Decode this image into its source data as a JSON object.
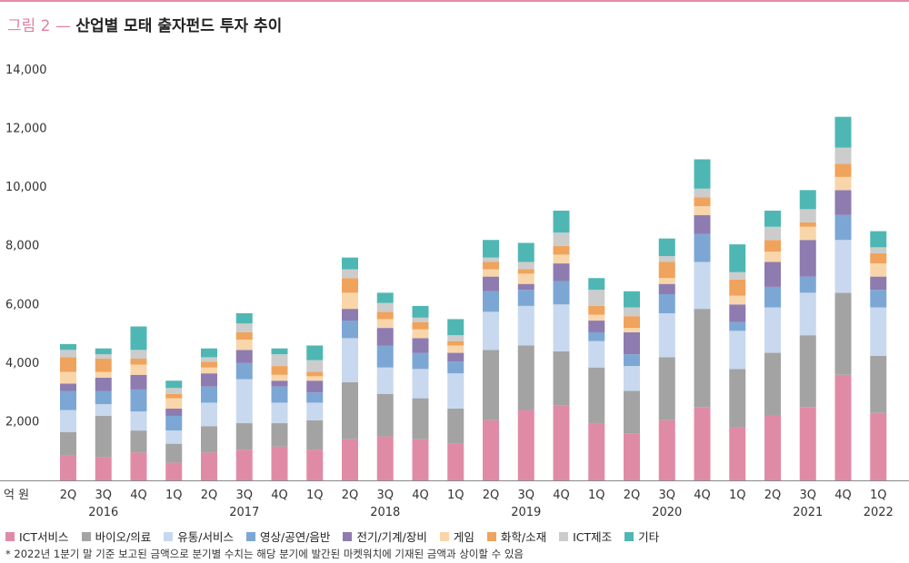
{
  "header": {
    "figure_label": "그림 2 —",
    "title": "산업별 모태 출자펀드 투자 추이"
  },
  "footnote": "* 2022년 1분기 말 기준 보고된 금액으로 분기별 수치는 해당 분기에 발간된 마켓워치에 기재된 금액과 상이할 수 있음",
  "chart_data": {
    "type": "bar",
    "stacked": true,
    "title": "산업별 모태 출자펀드 투자 추이",
    "ylabel": "억 원",
    "ylim": [
      0,
      14000
    ],
    "yticks": [
      2000,
      4000,
      6000,
      8000,
      10000,
      12000,
      14000
    ],
    "ytick_labels": [
      "2,000",
      "4,000",
      "6,000",
      "8,000",
      "10,000",
      "12,000",
      "14,000"
    ],
    "grid": false,
    "legend_position": "bottom",
    "categories": [
      "2Q",
      "3Q",
      "4Q",
      "1Q",
      "2Q",
      "3Q",
      "4Q",
      "1Q",
      "2Q",
      "3Q",
      "4Q",
      "1Q",
      "2Q",
      "3Q",
      "4Q",
      "1Q",
      "2Q",
      "3Q",
      "4Q",
      "1Q",
      "2Q",
      "3Q",
      "4Q",
      "1Q"
    ],
    "year_labels": [
      {
        "index": 1,
        "label": "2016"
      },
      {
        "index": 5,
        "label": "2017"
      },
      {
        "index": 9,
        "label": "2018"
      },
      {
        "index": 13,
        "label": "2019"
      },
      {
        "index": 17,
        "label": "2020"
      },
      {
        "index": 21,
        "label": "2021"
      },
      {
        "index": 23,
        "label": "2022"
      }
    ],
    "series": [
      {
        "name": "ICT서비스",
        "color": "#e08ba6",
        "values": [
          850,
          800,
          950,
          600,
          950,
          1050,
          1150,
          1050,
          1400,
          1500,
          1400,
          1250,
          2050,
          2400,
          2550,
          1950,
          1600,
          2050,
          2500,
          1800,
          2200,
          2500,
          3600,
          2300
        ]
      },
      {
        "name": "바이오/의료",
        "color": "#a3a3a3",
        "values": [
          800,
          1400,
          750,
          650,
          900,
          900,
          800,
          1000,
          1950,
          1450,
          1400,
          1200,
          2400,
          2200,
          1850,
          1900,
          1450,
          2150,
          3350,
          2000,
          2150,
          2450,
          2800,
          1950
        ]
      },
      {
        "name": "유통/서비스",
        "color": "#c8d8ee",
        "values": [
          750,
          400,
          650,
          450,
          800,
          1500,
          700,
          600,
          1500,
          900,
          1000,
          1200,
          1300,
          1350,
          1600,
          900,
          850,
          1500,
          1600,
          1300,
          1550,
          1450,
          1800,
          1650
        ]
      },
      {
        "name": "영상/공연/음반",
        "color": "#7ca7d4",
        "values": [
          650,
          450,
          750,
          500,
          550,
          550,
          550,
          350,
          600,
          750,
          550,
          400,
          700,
          550,
          800,
          300,
          400,
          650,
          950,
          300,
          700,
          550,
          850,
          600
        ]
      },
      {
        "name": "전기/기계/장비",
        "color": "#8e7bb0",
        "values": [
          250,
          450,
          500,
          250,
          450,
          450,
          200,
          400,
          400,
          600,
          500,
          300,
          500,
          200,
          600,
          400,
          750,
          350,
          650,
          600,
          850,
          1250,
          850,
          450
        ]
      },
      {
        "name": "게임",
        "color": "#f8d6aa",
        "values": [
          400,
          200,
          350,
          350,
          200,
          350,
          200,
          150,
          550,
          300,
          300,
          250,
          250,
          350,
          300,
          200,
          150,
          200,
          300,
          300,
          350,
          450,
          450,
          450
        ]
      },
      {
        "name": "화학/소재",
        "color": "#f0a35c",
        "values": [
          500,
          450,
          200,
          150,
          200,
          250,
          300,
          150,
          500,
          250,
          250,
          150,
          250,
          150,
          300,
          300,
          400,
          550,
          300,
          550,
          400,
          150,
          450,
          350
        ]
      },
      {
        "name": "ICT제조",
        "color": "#cccccc",
        "values": [
          250,
          150,
          300,
          200,
          150,
          300,
          400,
          400,
          300,
          300,
          150,
          200,
          150,
          250,
          450,
          550,
          300,
          200,
          300,
          250,
          450,
          450,
          550,
          200
        ]
      },
      {
        "name": "기타",
        "color": "#4fb7b3",
        "values": [
          200,
          200,
          800,
          250,
          300,
          350,
          200,
          500,
          400,
          350,
          400,
          550,
          600,
          650,
          750,
          400,
          550,
          600,
          1000,
          950,
          550,
          650,
          1050,
          550
        ]
      }
    ]
  }
}
